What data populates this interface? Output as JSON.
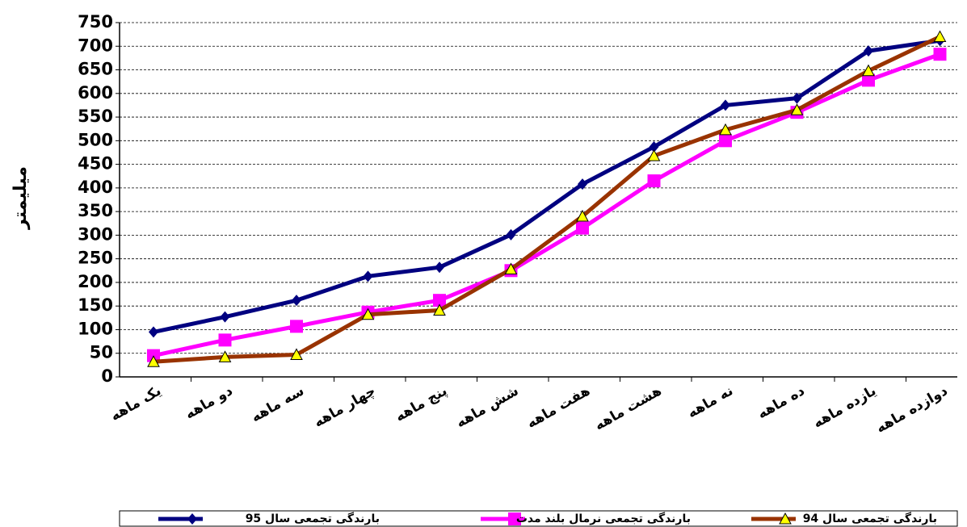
{
  "chart_data": {
    "type": "line",
    "y_label": "میلیمتر",
    "categories": [
      "یک ماهه",
      "دو ماهه",
      "سه ماهه",
      "چهار ماهه",
      "پنج ماهه",
      "شش ماهه",
      "هفت ماهه",
      "هشت ماهه",
      "نه ماهه",
      "ده ماهه",
      "یازده ماهه",
      "دوازده ماهه"
    ],
    "series": [
      {
        "name": "بارندگی تجمعی سال 95",
        "color": "#000080",
        "marker": "diamond",
        "values": [
          95,
          127,
          162,
          213,
          232,
          301,
          408,
          487,
          575,
          590,
          690,
          712
        ]
      },
      {
        "name": "بارندگی تجمعی نرمال بلند مدت",
        "color": "#ff00ff",
        "marker": "square",
        "values": [
          45,
          78,
          107,
          137,
          162,
          225,
          315,
          415,
          500,
          560,
          628,
          683
        ]
      },
      {
        "name": "بارندگی تجمعی سال 94",
        "color": "#993300",
        "marker": "triangle",
        "values": [
          32,
          42,
          47,
          132,
          141,
          228,
          340,
          468,
          523,
          565,
          648,
          720
        ]
      }
    ],
    "ylim": [
      0,
      750
    ],
    "yticks": [
      0,
      50,
      100,
      150,
      200,
      250,
      300,
      350,
      400,
      450,
      500,
      550,
      600,
      650,
      700,
      750
    ],
    "grid": true,
    "legend": "bottom"
  }
}
